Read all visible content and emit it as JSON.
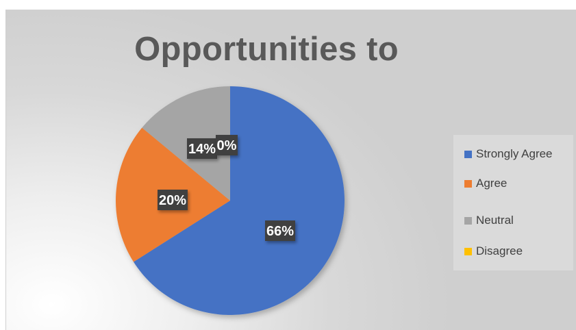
{
  "chart_data": {
    "type": "pie",
    "title": "Opportunities to",
    "categories": [
      "Strongly Agree",
      "Agree",
      "Neutral",
      "Disagree"
    ],
    "values": [
      66,
      20,
      14,
      0
    ],
    "data_labels": [
      "66%",
      "20%",
      "14%",
      "0%"
    ],
    "colors": [
      "#4472C4",
      "#ED7D31",
      "#A5A5A5",
      "#FFC000"
    ],
    "legend_position": "right"
  }
}
